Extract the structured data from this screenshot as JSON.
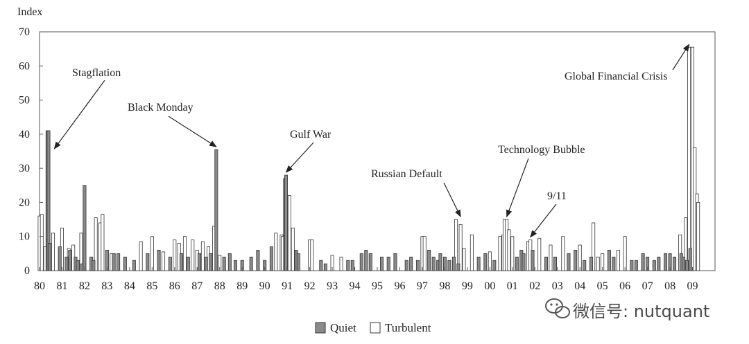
{
  "chart_data": {
    "type": "bar",
    "ylabel": "Index",
    "ylim": [
      0,
      70
    ],
    "yticks": [
      "0",
      "10",
      "20",
      "30",
      "40",
      "50",
      "60",
      "70"
    ],
    "xlim": [
      1980,
      2010
    ],
    "xticks": [
      "80",
      "81",
      "82",
      "83",
      "84",
      "85",
      "86",
      "87",
      "88",
      "89",
      "90",
      "91",
      "92",
      "93",
      "94",
      "95",
      "96",
      "97",
      "98",
      "99",
      "00",
      "01",
      "02",
      "03",
      "04",
      "05",
      "06",
      "07",
      "08",
      "09"
    ],
    "grid": false,
    "legend": {
      "placement": "bottom-center",
      "entries": [
        {
          "name": "Quiet",
          "color": "#8a8a8a"
        },
        {
          "name": "Turbulent",
          "color": "#ffffff"
        }
      ]
    },
    "annotations": [
      {
        "text": "Stagflation",
        "points_to": [
          1980.35,
          41
        ]
      },
      {
        "text": "Black Monday",
        "points_to": [
          1987.85,
          35.5
        ]
      },
      {
        "text": "Gulf War",
        "points_to": [
          1990.95,
          28
        ]
      },
      {
        "text": "Russian Default",
        "points_to": [
          1998.7,
          15
        ]
      },
      {
        "text": "Technology Bubble",
        "points_to": [
          2000.75,
          15
        ]
      },
      {
        "text": "9/11",
        "points_to": [
          2001.8,
          9
        ]
      },
      {
        "text": "Global Financial Crisis",
        "points_to": [
          2008.85,
          65.5
        ]
      }
    ],
    "series": [
      {
        "name": "Turbulent",
        "x": [
          1980.0,
          1980.1,
          1980.25,
          1980.6,
          1981.0,
          1981.3,
          1981.5,
          1981.85,
          1982.5,
          1982.7,
          1982.8,
          1983.2,
          1984.5,
          1985.0,
          1985.5,
          1986.0,
          1986.2,
          1986.45,
          1986.8,
          1987.0,
          1987.25,
          1987.5,
          1987.75,
          1988.0,
          1990.5,
          1990.75,
          1990.8,
          1991.0,
          1991.1,
          1991.25,
          1992.0,
          1992.1,
          1993.0,
          1993.4,
          1997.0,
          1997.1,
          1998.5,
          1998.7,
          1998.85,
          1999.2,
          2000.0,
          2000.45,
          2000.6,
          2000.65,
          2000.75,
          2000.85,
          2001.0,
          2001.7,
          2001.8,
          2002.2,
          2002.7,
          2003.25,
          2004.0,
          2004.6,
          2004.8,
          2005.0,
          2005.7,
          2006.0,
          2008.45,
          2008.7,
          2008.85,
          2009.0,
          2009.1,
          2009.2,
          2009.25
        ],
        "values": [
          16,
          16.5,
          7,
          11,
          12.5,
          6.5,
          7.5,
          11,
          15.5,
          14,
          16.5,
          5,
          8.5,
          10,
          5.5,
          9,
          8,
          10,
          9,
          6,
          8.5,
          7,
          13,
          4.5,
          11,
          10.5,
          10,
          15.5,
          22,
          12.5,
          9,
          9,
          4.5,
          4,
          10,
          10,
          15,
          13.5,
          6.5,
          10.5,
          5.5,
          10,
          10.5,
          15,
          15,
          12,
          10,
          8.5,
          9,
          9.5,
          7.5,
          10,
          7.5,
          14,
          4,
          5,
          6,
          10,
          10.5,
          15.5,
          65.5,
          65.5,
          36,
          22.5,
          20
        ]
      },
      {
        "name": "Quiet",
        "x": [
          1980.35,
          1980.4,
          1980.45,
          1980.9,
          1981.2,
          1981.35,
          1981.6,
          1981.7,
          1981.9,
          1982.0,
          1982.3,
          1982.4,
          1983.0,
          1983.3,
          1983.5,
          1983.8,
          1984.2,
          1984.8,
          1985.3,
          1985.8,
          1986.3,
          1986.6,
          1987.1,
          1987.4,
          1987.6,
          1987.85,
          1988.2,
          1988.45,
          1988.7,
          1989.0,
          1989.4,
          1989.7,
          1990.0,
          1990.3,
          1990.9,
          1990.95,
          1991.4,
          1991.5,
          1992.5,
          1992.7,
          1993.7,
          1993.9,
          1994.3,
          1994.5,
          1994.7,
          1995.2,
          1995.5,
          1995.8,
          1996.3,
          1996.5,
          1996.8,
          1997.3,
          1997.5,
          1997.7,
          1997.8,
          1998.0,
          1998.2,
          1998.4,
          1998.6,
          1999.5,
          1999.8,
          2000.2,
          2001.2,
          2001.4,
          2001.5,
          2001.9,
          2002.5,
          2002.9,
          2003.5,
          2003.8,
          2004.2,
          2004.5,
          2005.3,
          2005.5,
          2006.3,
          2006.5,
          2006.8,
          2007.0,
          2007.3,
          2007.5,
          2007.8,
          2008.0,
          2008.2,
          2008.5,
          2008.6,
          2008.75,
          2008.9
        ],
        "values": [
          41,
          41,
          8,
          7,
          4,
          6,
          4,
          3,
          2,
          25,
          4,
          3,
          6,
          5,
          5,
          4,
          3,
          5,
          6,
          4,
          5,
          4,
          5,
          4,
          5,
          35.5,
          4,
          5,
          3,
          3,
          4,
          6,
          3,
          7,
          27,
          28,
          6,
          5,
          3,
          2,
          3,
          3,
          5,
          6,
          5,
          4,
          4,
          5,
          3,
          4,
          3,
          6,
          4,
          3,
          5,
          4,
          3,
          4,
          2,
          4,
          5,
          3,
          4,
          6,
          5,
          6,
          4,
          4,
          5,
          6,
          3,
          4,
          6,
          4,
          3,
          3,
          5,
          4,
          3,
          4,
          5,
          5,
          4,
          5,
          4,
          3,
          6.5
        ]
      }
    ]
  }
}
